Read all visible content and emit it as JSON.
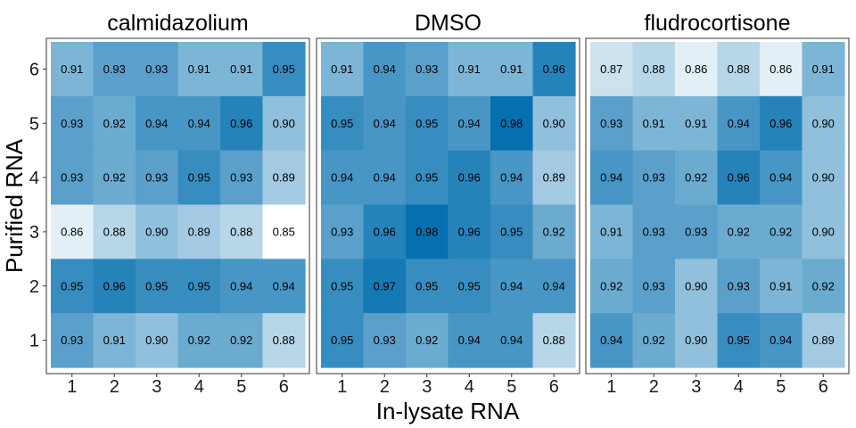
{
  "chart_data": {
    "type": "heatmap",
    "xlabel": "In-lysate RNA",
    "ylabel": "Purified RNA",
    "x_ticks": [
      "1",
      "2",
      "3",
      "4",
      "5",
      "6"
    ],
    "y_ticks": [
      "1",
      "2",
      "3",
      "4",
      "5",
      "6"
    ],
    "color_scale": {
      "low": "#ffffff",
      "high": "#0570b0",
      "min": 0.85,
      "max": 0.98
    },
    "panels": [
      {
        "title": "calmidazolium",
        "rows": [
          {
            "y": "6",
            "labels": [
              "0.91",
              "0.93",
              "0.93",
              "0.91",
              "0.91",
              "0.95"
            ]
          },
          {
            "y": "5",
            "labels": [
              "0.93",
              "0.92",
              "0.94",
              "0.94",
              "0.96",
              "0.90"
            ]
          },
          {
            "y": "4",
            "labels": [
              "0.93",
              "0.92",
              "0.93",
              "0.95",
              "0.93",
              "0.89"
            ]
          },
          {
            "y": "3",
            "labels": [
              "0.86",
              "0.88",
              "0.90",
              "0.89",
              "0.88",
              "0.85"
            ]
          },
          {
            "y": "2",
            "labels": [
              "0.95",
              "0.96",
              "0.95",
              "0.95",
              "0.94",
              "0.94"
            ]
          },
          {
            "y": "1",
            "labels": [
              "0.93",
              "0.91",
              "0.90",
              "0.92",
              "0.92",
              "0.88"
            ]
          }
        ]
      },
      {
        "title": "DMSO",
        "rows": [
          {
            "y": "6",
            "labels": [
              "0.91",
              "0.94",
              "0.93",
              "0.91",
              "0.91",
              "0.96"
            ]
          },
          {
            "y": "5",
            "labels": [
              "0.95",
              "0.94",
              "0.95",
              "0.94",
              "0.98",
              "0.90"
            ]
          },
          {
            "y": "4",
            "labels": [
              "0.94",
              "0.94",
              "0.95",
              "0.96",
              "0.94",
              "0.89"
            ]
          },
          {
            "y": "3",
            "labels": [
              "0.93",
              "0.96",
              "0.98",
              "0.96",
              "0.95",
              "0.92"
            ]
          },
          {
            "y": "2",
            "labels": [
              "0.95",
              "0.97",
              "0.95",
              "0.95",
              "0.94",
              "0.94"
            ]
          },
          {
            "y": "1",
            "labels": [
              "0.95",
              "0.93",
              "0.92",
              "0.94",
              "0.94",
              "0.88"
            ]
          }
        ]
      },
      {
        "title": "fludrocortisone",
        "rows": [
          {
            "y": "6",
            "labels": [
              "0.87",
              "0.88",
              "0.86",
              "0.88",
              "0.86",
              "0.91"
            ]
          },
          {
            "y": "5",
            "labels": [
              "0.93",
              "0.91",
              "0.91",
              "0.94",
              "0.96",
              "0.90"
            ]
          },
          {
            "y": "4",
            "labels": [
              "0.94",
              "0.93",
              "0.92",
              "0.96",
              "0.94",
              "0.90"
            ]
          },
          {
            "y": "3",
            "labels": [
              "0.91",
              "0.93",
              "0.93",
              "0.92",
              "0.92",
              "0.90"
            ]
          },
          {
            "y": "2",
            "labels": [
              "0.92",
              "0.93",
              "0.90",
              "0.93",
              "0.91",
              "0.92"
            ]
          },
          {
            "y": "1",
            "labels": [
              "0.94",
              "0.92",
              "0.90",
              "0.95",
              "0.94",
              "0.89"
            ]
          }
        ]
      }
    ]
  }
}
